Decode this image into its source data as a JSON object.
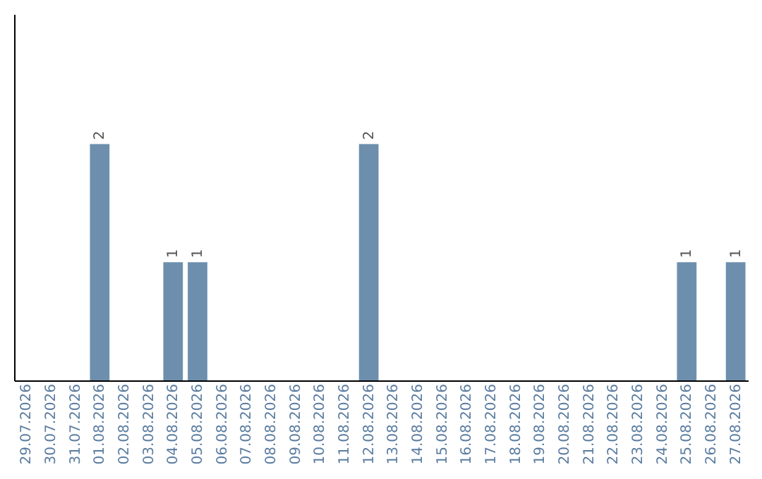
{
  "chart_data": {
    "type": "bar",
    "categories": [
      "29.07.2026",
      "30.07.2026",
      "31.07.2026",
      "01.08.2026",
      "02.08.2026",
      "03.08.2026",
      "04.08.2026",
      "05.08.2026",
      "06.08.2026",
      "07.08.2026",
      "08.08.2026",
      "09.08.2026",
      "10.08.2026",
      "11.08.2026",
      "12.08.2026",
      "13.08.2026",
      "14.08.2026",
      "15.08.2026",
      "16.08.2026",
      "17.08.2026",
      "18.08.2026",
      "19.08.2026",
      "20.08.2026",
      "21.08.2026",
      "22.08.2026",
      "23.08.2026",
      "24.08.2026",
      "25.08.2026",
      "26.08.2026",
      "27.08.2026"
    ],
    "values": [
      0,
      0,
      0,
      2,
      0,
      0,
      1,
      1,
      0,
      0,
      0,
      0,
      0,
      0,
      2,
      0,
      0,
      0,
      0,
      0,
      0,
      0,
      0,
      0,
      0,
      0,
      0,
      1,
      0,
      1
    ],
    "value_labels": [
      null,
      null,
      null,
      "2",
      null,
      null,
      "1",
      "1",
      null,
      null,
      null,
      null,
      null,
      null,
      "2",
      null,
      null,
      null,
      null,
      null,
      null,
      null,
      null,
      null,
      null,
      null,
      null,
      "1",
      null,
      "1"
    ],
    "color": "#6d8fad",
    "ylim": [
      0,
      3.1
    ],
    "tick_labels": "x",
    "grid": false
  }
}
